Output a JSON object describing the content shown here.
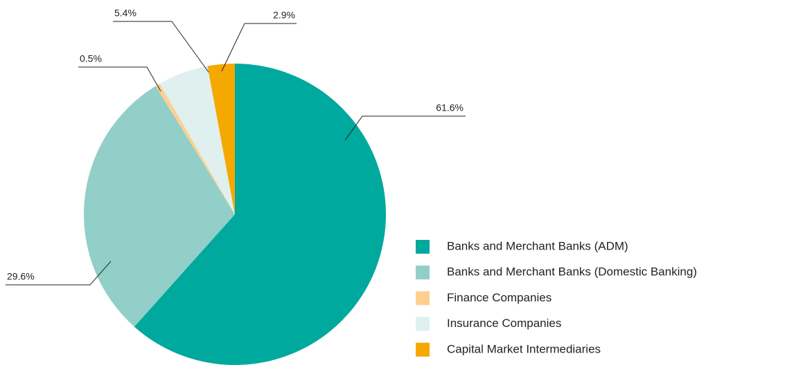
{
  "chart_data": {
    "type": "pie",
    "categories": [
      "Banks and Merchant Banks (ADM)",
      "Banks and Merchant Banks (Domestic Banking)",
      "Finance Companies",
      "Insurance Companies",
      "Capital Market Intermediaries"
    ],
    "values": [
      61.6,
      29.6,
      0.5,
      5.4,
      2.9
    ],
    "value_labels": [
      "61.6%",
      "29.6%",
      "0.5%",
      "5.4%",
      "2.9%"
    ],
    "colors": [
      "#00a99d",
      "#92cfc8",
      "#fdd08f",
      "#dff0ee",
      "#f5a800"
    ],
    "legend": "right"
  }
}
